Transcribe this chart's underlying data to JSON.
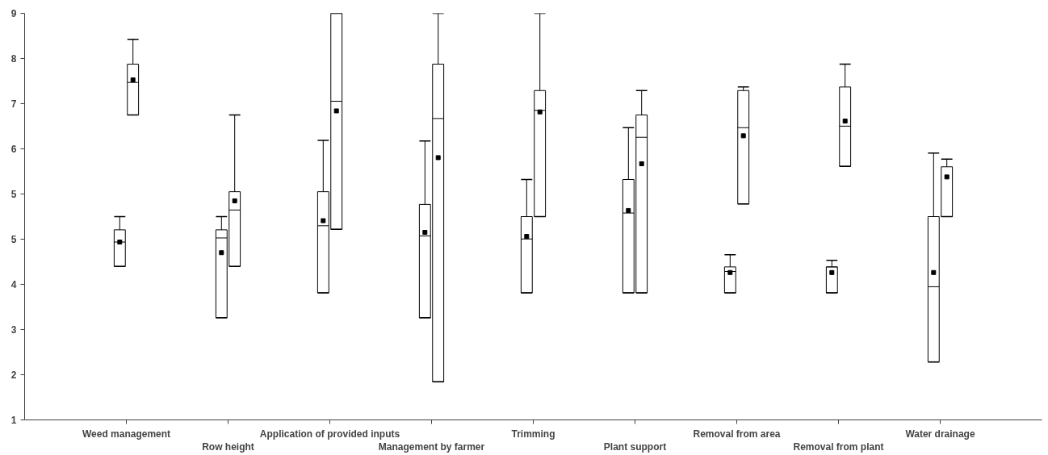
{
  "chart_data": {
    "type": "box",
    "categories": [
      "Weed management",
      "Row height",
      "Application of provided inputs",
      "Management by farmer",
      "Trimming",
      "Plant support",
      "Removal from area",
      "Removal from plant",
      "Water drainage"
    ],
    "series": [
      {
        "color": "#000000",
        "boxes": [
          {
            "low": 4.02,
            "q1": 4.02,
            "median": 4.5,
            "q3": 4.74,
            "high": 5.0,
            "mean": 4.5
          },
          {
            "low": 3.01,
            "q1": 3.01,
            "median": 4.58,
            "q3": 4.74,
            "high": 5.0,
            "mean": 4.29
          },
          {
            "low": 3.5,
            "q1": 3.5,
            "median": 4.82,
            "q3": 5.49,
            "high": 6.5,
            "mean": 4.92
          },
          {
            "low": 3.01,
            "q1": 3.01,
            "median": 4.62,
            "q3": 5.24,
            "high": 6.49,
            "mean": 4.69
          },
          {
            "low": 3.5,
            "q1": 3.5,
            "median": 4.56,
            "q3": 5.0,
            "high": 5.73,
            "mean": 4.61
          },
          {
            "low": 3.5,
            "q1": 3.5,
            "median": 5.07,
            "q3": 5.73,
            "high": 6.75,
            "mean": 5.12
          },
          {
            "low": 3.5,
            "q1": 3.5,
            "median": 3.92,
            "q3": 4.01,
            "high": 4.25,
            "mean": 3.9
          },
          {
            "low": 3.5,
            "q1": 3.5,
            "median": 4.01,
            "q3": 4.01,
            "high": 4.14,
            "mean": 3.9
          },
          {
            "low": 2.14,
            "q1": 2.14,
            "median": 3.62,
            "q3": 5.0,
            "high": 6.25,
            "mean": 3.9
          }
        ]
      },
      {
        "color": "#000000",
        "boxes": [
          {
            "low": 7.0,
            "q1": 7.0,
            "median": 7.64,
            "q3": 8.0,
            "high": 8.49,
            "mean": 7.69
          },
          {
            "low": 4.02,
            "q1": 4.02,
            "median": 5.13,
            "q3": 5.49,
            "high": 7.0,
            "mean": 5.31
          },
          {
            "low": 4.75,
            "q1": 4.75,
            "median": 7.27,
            "q3": 9.0,
            "high": 9.0,
            "mean": 7.08
          },
          {
            "low": 1.75,
            "q1": 1.75,
            "median": 6.93,
            "q3": 8.0,
            "high": 9.0,
            "mean": 6.16
          },
          {
            "low": 5.0,
            "q1": 5.0,
            "median": 7.09,
            "q3": 7.48,
            "high": 9.0,
            "mean": 7.06
          },
          {
            "low": 3.5,
            "q1": 3.5,
            "median": 6.56,
            "q3": 7.0,
            "high": 7.48,
            "mean": 6.04
          },
          {
            "low": 5.25,
            "q1": 5.25,
            "median": 6.75,
            "q3": 7.48,
            "high": 7.55,
            "mean": 6.59
          },
          {
            "low": 5.99,
            "q1": 5.99,
            "median": 6.78,
            "q3": 7.55,
            "high": 8.0,
            "mean": 6.88
          },
          {
            "low": 5.0,
            "q1": 5.0,
            "median": 5.0,
            "q3": 5.98,
            "high": 6.13,
            "mean": 5.78
          }
        ]
      }
    ],
    "ylim": [
      1,
      9
    ],
    "yticks": [
      1,
      {
        "value": 1.889,
        "label": "2"
      },
      {
        "value": 2.778,
        "label": "3"
      },
      {
        "value": 3.667,
        "label": "4"
      },
      {
        "value": 4.556,
        "label": "5"
      },
      {
        "value": 5.444,
        "label": "5"
      },
      {
        "value": 6.333,
        "label": "6"
      },
      {
        "value": 7.222,
        "label": "7"
      },
      {
        "value": 8.111,
        "label": "8"
      },
      9
    ],
    "marker": "square",
    "grid": false
  }
}
